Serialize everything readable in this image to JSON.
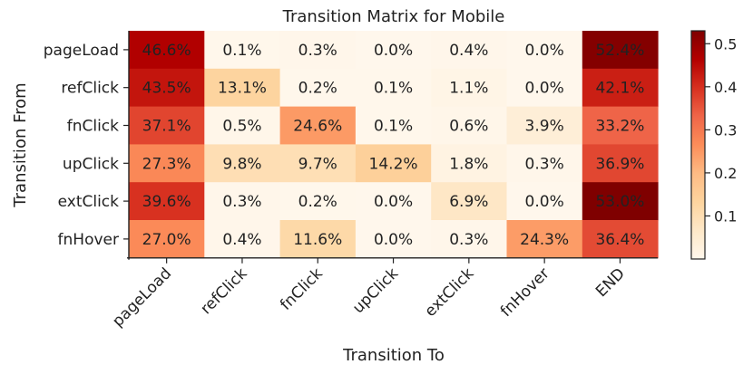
{
  "chart_data": {
    "type": "heatmap",
    "title": "Transition Matrix for Mobile",
    "xlabel": "Transition To",
    "ylabel": "Transition From",
    "rows": [
      "pageLoad",
      "refClick",
      "fnClick",
      "upClick",
      "extClick",
      "fnHover"
    ],
    "columns": [
      "pageLoad",
      "refClick",
      "fnClick",
      "upClick",
      "extClick",
      "fnHover",
      "END"
    ],
    "values": [
      [
        0.466,
        0.001,
        0.003,
        0.0,
        0.004,
        0.0,
        0.524
      ],
      [
        0.435,
        0.131,
        0.002,
        0.001,
        0.011,
        0.0,
        0.421
      ],
      [
        0.371,
        0.005,
        0.246,
        0.001,
        0.006,
        0.039,
        0.332
      ],
      [
        0.273,
        0.098,
        0.097,
        0.142,
        0.018,
        0.003,
        0.369
      ],
      [
        0.396,
        0.003,
        0.002,
        0.0,
        0.069,
        0.0,
        0.53
      ],
      [
        0.27,
        0.004,
        0.116,
        0.0,
        0.003,
        0.243,
        0.364
      ]
    ],
    "cell_labels": [
      [
        "46.6%",
        "0.1%",
        "0.3%",
        "0.0%",
        "0.4%",
        "0.0%",
        "52.4%"
      ],
      [
        "43.5%",
        "13.1%",
        "0.2%",
        "0.1%",
        "1.1%",
        "0.0%",
        "42.1%"
      ],
      [
        "37.1%",
        "0.5%",
        "24.6%",
        "0.1%",
        "0.6%",
        "3.9%",
        "33.2%"
      ],
      [
        "27.3%",
        "9.8%",
        "9.7%",
        "14.2%",
        "1.8%",
        "0.3%",
        "36.9%"
      ],
      [
        "39.6%",
        "0.3%",
        "0.2%",
        "0.0%",
        "6.9%",
        "0.0%",
        "53.0%"
      ],
      [
        "27.0%",
        "0.4%",
        "11.6%",
        "0.0%",
        "0.3%",
        "24.3%",
        "36.4%"
      ]
    ],
    "colorscale": "OrRd",
    "colorbar": {
      "range": [
        0,
        0.53
      ],
      "ticks": [
        0.1,
        0.2,
        0.3,
        0.4,
        0.5
      ],
      "tick_labels": [
        "0.1",
        "0.2",
        "0.3",
        "0.4",
        "0.5"
      ]
    },
    "grid": false,
    "legend": "colorbar-right"
  }
}
